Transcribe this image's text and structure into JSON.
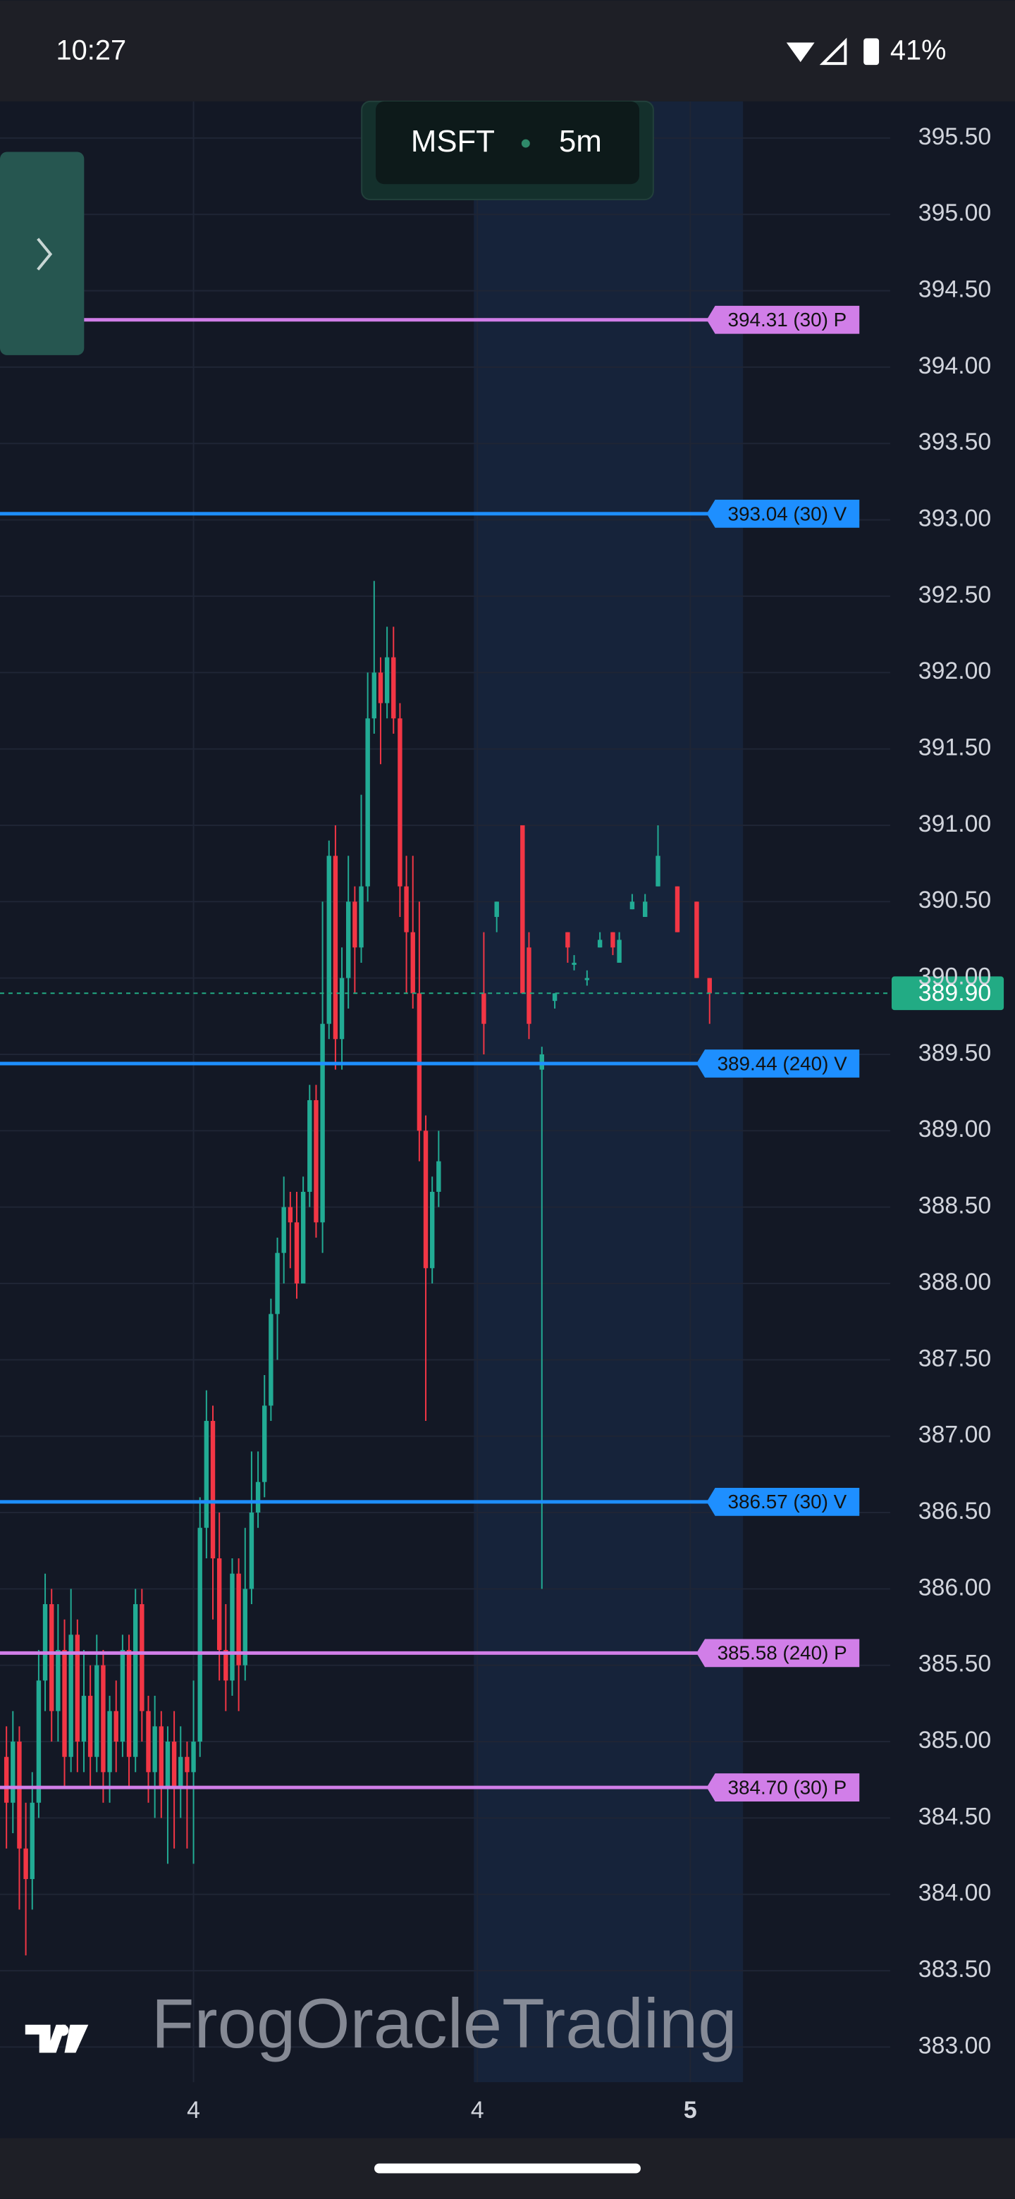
{
  "status_bar": {
    "time": "10:27",
    "battery": "41%"
  },
  "chart_data": {
    "type": "candlestick",
    "symbol": "MSFT",
    "interval": "5m",
    "watermark": "FrogOracleTrading",
    "x": [
      0,
      1,
      2,
      3,
      4,
      5,
      6,
      7,
      8,
      9,
      10,
      11,
      12,
      13,
      14,
      15,
      16,
      17,
      18,
      19,
      20,
      21,
      22,
      23,
      24,
      25,
      26,
      27,
      28,
      29,
      30,
      31,
      32,
      33,
      34,
      35,
      36,
      37,
      38,
      39,
      40,
      41,
      42,
      43,
      44,
      45,
      46,
      47,
      48,
      49,
      50,
      51,
      52,
      53,
      54,
      55,
      56,
      57,
      58,
      59,
      60,
      61,
      62,
      63,
      64,
      65,
      66,
      67,
      74,
      76,
      80,
      81,
      83,
      85,
      87,
      88,
      90,
      92,
      94,
      95,
      97,
      99,
      101,
      104,
      107,
      109
    ],
    "open": [
      384.9,
      384.6,
      385.0,
      384.3,
      384.1,
      384.6,
      385.4,
      385.9,
      385.2,
      385.6,
      384.9,
      385.7,
      385.0,
      385.3,
      384.9,
      385.5,
      384.8,
      385.2,
      385.0,
      385.6,
      384.9,
      385.9,
      385.2,
      384.8,
      385.1,
      384.7,
      385.0,
      384.7,
      384.9,
      384.8,
      385.0,
      386.4,
      387.1,
      386.2,
      385.6,
      385.4,
      386.1,
      385.5,
      386.0,
      386.5,
      386.7,
      387.2,
      387.8,
      388.2,
      388.5,
      388.4,
      388.0,
      388.6,
      389.2,
      388.4,
      389.7,
      390.8,
      389.6,
      390.0,
      390.5,
      390.2,
      390.6,
      391.7,
      392.0,
      391.8,
      392.1,
      391.7,
      390.6,
      390.3,
      389.9,
      389.0,
      388.1,
      388.6,
      389.9,
      390.4,
      391.0,
      390.2,
      389.4,
      389.85,
      390.3,
      390.1,
      390.0,
      390.2,
      390.3,
      390.1,
      390.45,
      390.4,
      390.6,
      390.6,
      390.5,
      390.0
    ],
    "high": [
      385.1,
      385.2,
      385.1,
      384.6,
      384.8,
      385.6,
      386.1,
      386.0,
      385.9,
      385.8,
      386.0,
      385.8,
      385.6,
      385.5,
      385.7,
      385.6,
      385.3,
      385.4,
      385.7,
      385.7,
      386.0,
      386.0,
      385.3,
      385.3,
      385.2,
      385.1,
      385.2,
      385.1,
      385.0,
      385.4,
      386.6,
      387.3,
      387.2,
      386.5,
      385.9,
      386.2,
      386.2,
      386.4,
      386.9,
      386.9,
      387.4,
      387.9,
      388.3,
      388.7,
      388.6,
      388.6,
      388.7,
      389.3,
      389.3,
      390.5,
      390.9,
      391.0,
      390.2,
      390.8,
      390.6,
      391.2,
      392.0,
      392.6,
      392.1,
      392.3,
      392.3,
      391.8,
      390.8,
      390.8,
      390.5,
      389.1,
      388.7,
      389.0,
      390.3,
      390.5,
      391.0,
      390.3,
      389.55,
      389.9,
      390.3,
      390.15,
      390.05,
      390.3,
      390.3,
      390.3,
      390.55,
      390.55,
      391.0,
      390.6,
      390.5,
      390.0
    ],
    "low": [
      384.3,
      384.4,
      383.9,
      383.6,
      383.9,
      384.5,
      385.2,
      385.0,
      385.0,
      384.7,
      384.8,
      384.8,
      384.8,
      384.7,
      384.8,
      384.6,
      384.6,
      384.8,
      384.9,
      384.7,
      384.8,
      385.0,
      384.6,
      384.5,
      384.5,
      384.2,
      384.3,
      384.5,
      384.3,
      384.2,
      384.9,
      386.2,
      385.8,
      385.4,
      385.2,
      385.3,
      385.2,
      385.4,
      385.9,
      386.4,
      386.6,
      387.1,
      387.5,
      388.0,
      388.1,
      387.9,
      388.0,
      388.5,
      388.3,
      388.2,
      389.6,
      389.4,
      389.4,
      389.8,
      389.9,
      390.1,
      390.5,
      391.6,
      391.4,
      391.7,
      391.6,
      390.4,
      389.9,
      389.8,
      388.8,
      387.1,
      388.0,
      388.5,
      389.5,
      390.3,
      389.9,
      389.6,
      386.0,
      389.8,
      390.1,
      390.05,
      389.95,
      390.2,
      390.15,
      390.1,
      390.45,
      390.4,
      390.6,
      390.3,
      390.0,
      389.7
    ],
    "close": [
      384.6,
      385.0,
      384.3,
      384.1,
      384.6,
      385.4,
      385.9,
      385.2,
      385.6,
      384.9,
      385.7,
      385.0,
      385.3,
      384.9,
      385.5,
      384.8,
      385.2,
      385.0,
      385.6,
      384.9,
      385.9,
      385.2,
      384.8,
      385.1,
      384.7,
      385.0,
      384.7,
      384.9,
      384.8,
      385.0,
      386.4,
      387.1,
      386.2,
      385.6,
      385.4,
      386.1,
      385.5,
      386.0,
      386.5,
      386.7,
      387.2,
      387.8,
      388.2,
      388.5,
      388.4,
      388.0,
      388.6,
      389.2,
      388.4,
      389.7,
      390.8,
      389.6,
      390.0,
      390.5,
      390.2,
      390.6,
      391.7,
      392.0,
      391.8,
      392.1,
      391.7,
      390.6,
      390.3,
      389.9,
      389.0,
      388.1,
      388.6,
      388.8,
      389.7,
      390.5,
      389.9,
      389.7,
      389.5,
      389.9,
      390.2,
      390.1,
      390.0,
      390.25,
      390.2,
      390.25,
      390.5,
      390.5,
      390.8,
      390.3,
      390.0,
      389.9
    ],
    "up_color": "#22ab94",
    "down_color": "#f23645",
    "xlim": [
      -1,
      137
    ],
    "xticks": [
      {
        "value": 29,
        "label": "4"
      },
      {
        "value": 73,
        "label": "4"
      },
      {
        "value": 106,
        "label": "5"
      }
    ],
    "ylim": [
      382.77,
      395.74
    ],
    "yticks": [
      {
        "value": 383,
        "label": "383.00"
      },
      {
        "value": 383.5,
        "label": "383.50"
      },
      {
        "value": 384,
        "label": "384.00"
      },
      {
        "value": 384.5,
        "label": "384.50"
      },
      {
        "value": 385,
        "label": "385.00"
      },
      {
        "value": 385.5,
        "label": "385.50"
      },
      {
        "value": 386,
        "label": "386.00"
      },
      {
        "value": 386.5,
        "label": "386.50"
      },
      {
        "value": 387,
        "label": "387.00"
      },
      {
        "value": 387.5,
        "label": "387.50"
      },
      {
        "value": 388,
        "label": "388.00"
      },
      {
        "value": 388.5,
        "label": "388.50"
      },
      {
        "value": 389,
        "label": "389.00"
      },
      {
        "value": 389.5,
        "label": "389.50"
      },
      {
        "value": 390,
        "label": "390.00"
      },
      {
        "value": 390.5,
        "label": "390.50"
      },
      {
        "value": 391,
        "label": "391.00"
      },
      {
        "value": 391.5,
        "label": "391.50"
      },
      {
        "value": 392,
        "label": "392.00"
      },
      {
        "value": 392.5,
        "label": "392.50"
      },
      {
        "value": 393,
        "label": "393.00"
      },
      {
        "value": 393.5,
        "label": "393.50"
      },
      {
        "value": 394,
        "label": "394.00"
      },
      {
        "value": 394.5,
        "label": "394.50"
      },
      {
        "value": 395,
        "label": "395.00"
      },
      {
        "value": 395.5,
        "label": "395.50"
      }
    ],
    "grid": true,
    "levels": [
      {
        "value": 394.31,
        "label": "394.31 (30) P",
        "color": "#d17ee8"
      },
      {
        "value": 393.04,
        "label": "393.04 (30) V",
        "color": "#1e8fff"
      },
      {
        "value": 389.44,
        "label": "389.44 (240) V",
        "color": "#1e8fff"
      },
      {
        "value": 386.57,
        "label": "386.57 (30) V",
        "color": "#1e8fff"
      },
      {
        "value": 385.58,
        "label": "385.58 (240) P",
        "color": "#d17ee8"
      },
      {
        "value": 384.7,
        "label": "384.70 (30) P",
        "color": "#d17ee8"
      }
    ],
    "last_price": {
      "value": 389.9,
      "label": "389.90",
      "color": "#22ab84"
    }
  }
}
